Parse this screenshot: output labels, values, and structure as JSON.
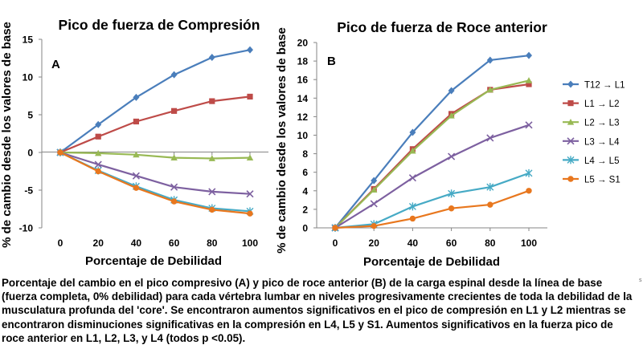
{
  "chart_data": [
    {
      "type": "line",
      "title": "Pico de fuerza de Compresión",
      "panel_label": "A",
      "xlabel": "Porcentaje de Debilidad",
      "ylabel": "% de cambio desde los valores de base",
      "x": [
        0,
        20,
        40,
        60,
        80,
        100
      ],
      "xticks": [
        "0",
        "20",
        "40",
        "60",
        "80",
        "100"
      ],
      "ylim": [
        -10,
        15
      ],
      "yticks": [
        "15",
        "10",
        "5",
        "0",
        "-5",
        "-10"
      ],
      "grid": false,
      "legend": "none",
      "series": [
        {
          "name": "T12 → L1",
          "color": "#4a7ebb",
          "marker": "diamond",
          "values": [
            0,
            3.7,
            7.3,
            10.3,
            12.6,
            13.6
          ]
        },
        {
          "name": "L1 → L2",
          "color": "#be4b48",
          "marker": "square",
          "values": [
            0,
            2.1,
            4.1,
            5.5,
            6.8,
            7.4
          ]
        },
        {
          "name": "L2 → L3",
          "color": "#98b954",
          "marker": "triangle",
          "values": [
            0,
            -0.1,
            -0.3,
            -0.7,
            -0.8,
            -0.7
          ]
        },
        {
          "name": "L3 → L4",
          "color": "#7d60a0",
          "marker": "x",
          "values": [
            0,
            -1.6,
            -3.1,
            -4.6,
            -5.2,
            -5.5
          ]
        },
        {
          "name": "L4 → L5",
          "color": "#46aac5",
          "marker": "star",
          "values": [
            0,
            -2.4,
            -4.5,
            -6.3,
            -7.4,
            -7.8
          ]
        },
        {
          "name": "L5 → S1",
          "color": "#e8771e",
          "marker": "circle",
          "values": [
            0,
            -2.5,
            -4.7,
            -6.5,
            -7.6,
            -8.1
          ]
        }
      ]
    },
    {
      "type": "line",
      "title": "Pico de fuerza de Roce anterior",
      "panel_label": "B",
      "xlabel": "Porcentaje de Debilidad",
      "ylabel": "% de cambio desde los valores de base",
      "x": [
        0,
        20,
        40,
        60,
        80,
        100
      ],
      "xticks": [
        "0",
        "20",
        "40",
        "60",
        "80",
        "100"
      ],
      "ylim": [
        0,
        20
      ],
      "yticks": [
        "20",
        "18",
        "16",
        "14",
        "12",
        "10",
        "8",
        "6",
        "4",
        "2",
        "0"
      ],
      "grid": false,
      "legend": "right",
      "series": [
        {
          "name": "T12 → L1",
          "color": "#4a7ebb",
          "marker": "diamond",
          "values": [
            0,
            5.1,
            10.3,
            14.8,
            18.1,
            18.6
          ]
        },
        {
          "name": "L1 → L2",
          "color": "#be4b48",
          "marker": "square",
          "values": [
            0,
            4.2,
            8.5,
            12.3,
            14.9,
            15.5
          ]
        },
        {
          "name": "L2 → L3",
          "color": "#98b954",
          "marker": "triangle",
          "values": [
            0,
            4.1,
            8.3,
            12.1,
            14.9,
            15.9
          ]
        },
        {
          "name": "L3 → L4",
          "color": "#7d60a0",
          "marker": "x",
          "values": [
            0,
            2.6,
            5.4,
            7.7,
            9.7,
            11.1
          ]
        },
        {
          "name": "L4 → L5",
          "color": "#46aac5",
          "marker": "star",
          "values": [
            0,
            0.4,
            2.3,
            3.7,
            4.4,
            5.9
          ]
        },
        {
          "name": "L5 → S1",
          "color": "#e8771e",
          "marker": "circle",
          "values": [
            0,
            0.2,
            1.0,
            2.1,
            2.5,
            4.0
          ]
        }
      ]
    }
  ],
  "caption": "Porcentaje del cambio en el pico compresivo (A) y pico de roce anterior (B) de la carga espinal desde la línea de base (fuerza completa, 0% debilidad) para cada vértebra lumbar en niveles progresivamente crecientes de toda la debilidad de la musculatura profunda del 'core'. Se encontraron aumentos significativos en el pico de compresión en L1 y L2 mientras se encontraron disminuciones significativas en la compresión en L4, L5 y S1. Aumentos significativos en la fuerza pico de roce anterior en L1, L2, L3, y L4 (todos p <0.05).",
  "stray_mark": "s"
}
